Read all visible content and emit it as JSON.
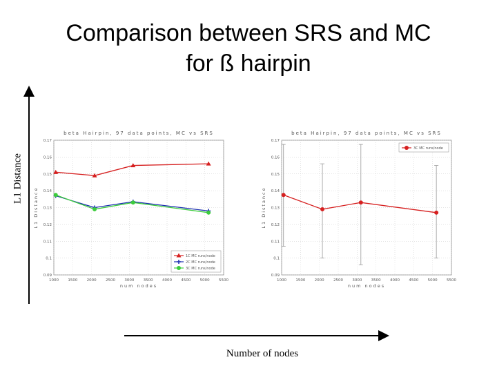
{
  "slide": {
    "title_line1": "Comparison between SRS and MC",
    "title_line2": "for ß hairpin",
    "y_caption": "L1 Distance",
    "x_caption": "Number of nodes"
  },
  "colors": {
    "red": "#d62020",
    "blue": "#1c2fb0",
    "green": "#3ccc3c",
    "grid": "#c8c8c8",
    "errorbar": "#999999"
  },
  "chart_data": [
    {
      "type": "line",
      "title": "beta Hairpin, 97 data points, MC vs SRS",
      "xlabel": "num nodes",
      "ylabel": "L1 Distance",
      "xlim": [
        1000,
        5500
      ],
      "ylim": [
        0.09,
        0.17
      ],
      "xticks": [
        1000,
        1500,
        2000,
        2500,
        3000,
        3500,
        4000,
        4500,
        5000,
        5500
      ],
      "yticks": [
        0.09,
        0.1,
        0.11,
        0.12,
        0.13,
        0.14,
        0.15,
        0.16,
        0.17
      ],
      "tick_labels_y": [
        "0.09",
        "0.1",
        "0.11",
        "0.12",
        "0.13",
        "0.14",
        "0.15",
        "0.16",
        "0.17"
      ],
      "grid": true,
      "legend": "bottom-right",
      "series": [
        {
          "name": "1C MC runs/node",
          "color": "#d62020",
          "marker": "triangle",
          "x": [
            1050,
            2080,
            3100,
            5100
          ],
          "y": [
            0.151,
            0.149,
            0.155,
            0.156
          ]
        },
        {
          "name": "2C MC runs/node",
          "color": "#1c2fb0",
          "marker": "cross",
          "x": [
            1050,
            2080,
            3100,
            5100
          ],
          "y": [
            0.137,
            0.13,
            0.1335,
            0.128
          ]
        },
        {
          "name": "3C MC runs/node",
          "color": "#3ccc3c",
          "marker": "circle",
          "x": [
            1050,
            2080,
            3100,
            5100
          ],
          "y": [
            0.1375,
            0.129,
            0.133,
            0.127
          ]
        }
      ]
    },
    {
      "type": "line",
      "title": "beta Hairpin, 97 data points, MC vs SRS",
      "xlabel": "num nodes",
      "ylabel": "L1 Distance",
      "xlim": [
        1000,
        5500
      ],
      "ylim": [
        0.09,
        0.17
      ],
      "xticks": [
        1000,
        1500,
        2000,
        2500,
        3000,
        3500,
        4000,
        4500,
        5000,
        5500
      ],
      "yticks": [
        0.09,
        0.1,
        0.11,
        0.12,
        0.13,
        0.14,
        0.15,
        0.16,
        0.17
      ],
      "tick_labels_y": [
        "0.09",
        "0.1",
        "0.11",
        "0.12",
        "0.13",
        "0.14",
        "0.15",
        "0.16",
        "0.17"
      ],
      "grid": true,
      "legend": "top-right",
      "series": [
        {
          "name": "3C MC runs/node",
          "color": "#d62020",
          "marker": "circle",
          "x": [
            1050,
            2080,
            3100,
            5100
          ],
          "y": [
            0.1375,
            0.129,
            0.133,
            0.127
          ],
          "err_low": [
            0.107,
            0.1,
            0.096,
            0.1
          ],
          "err_high": [
            0.1675,
            0.156,
            0.1675,
            0.155
          ]
        }
      ]
    }
  ]
}
